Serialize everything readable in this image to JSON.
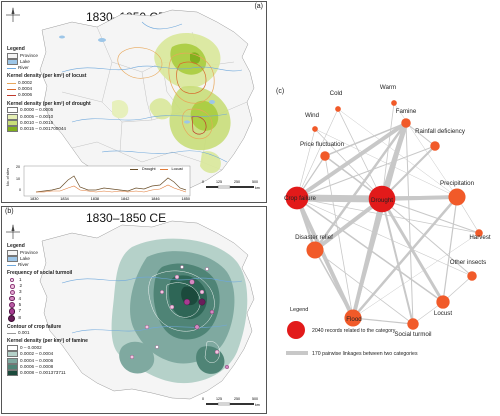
{
  "panel_a": {
    "label": "(a)",
    "title": "1830–1850 CE",
    "legend": {
      "heading": "Legend",
      "province": "Province",
      "lake": "Lake",
      "river": "River",
      "locust_title": "Kernel density (per km²) of locust",
      "locust_levels": [
        "0.0002",
        "0.0004",
        "0.0006"
      ],
      "drought_title": "Kernel density (per km²) of drought",
      "drought_levels": [
        "0.0000 – 0.0005",
        "0.0005 – 0.0010",
        "0.0010 – 0.0015",
        "0.0015 – 0.001700044"
      ]
    },
    "inset": {
      "ylabel": "No. of sites",
      "yticks": [
        "20",
        "10",
        "0"
      ],
      "xticks": [
        "1830",
        "1834",
        "1838",
        "1842",
        "1846",
        "1850"
      ],
      "legend_drought": "Drought",
      "legend_locust": "Locust"
    },
    "scale": [
      "0",
      "125",
      "250",
      "500"
    ],
    "scale_unit": "km"
  },
  "panel_b": {
    "label": "(b)",
    "title": "1830–1850 CE",
    "legend": {
      "heading": "Legend",
      "province": "Province",
      "lake": "Lake",
      "river": "River",
      "turmoil_title": "Frequency of social turmoil",
      "turmoil_levels": [
        "1",
        "2",
        "3",
        "4",
        "5",
        "7",
        "8"
      ],
      "crop_title": "Contour of crop failure",
      "crop_level": "0.001",
      "famine_title": "Kernel density (per km²) of famine",
      "famine_levels": [
        "0 – 0.0002",
        "0.0002 – 0.0004",
        "0.0004 – 0.0006",
        "0.0006 – 0.0008",
        "0.0008 – 0.001373711"
      ]
    },
    "scale": [
      "0",
      "125",
      "250",
      "500"
    ],
    "scale_unit": "km"
  },
  "panel_c": {
    "label": "(c)",
    "nodes": [
      {
        "id": "Cold",
        "size": 3
      },
      {
        "id": "Warm",
        "size": 3
      },
      {
        "id": "Famine",
        "size": 5
      },
      {
        "id": "Wind",
        "size": 3
      },
      {
        "id": "Rainfall deficiency",
        "size": 5
      },
      {
        "id": "Price fluctuation",
        "size": 5
      },
      {
        "id": "Precipitation",
        "size": 9
      },
      {
        "id": "Crop failure",
        "size": 12
      },
      {
        "id": "Drought",
        "size": 14
      },
      {
        "id": "Harvest",
        "size": 4
      },
      {
        "id": "Disaster relief",
        "size": 9
      },
      {
        "id": "Other insects",
        "size": 5
      },
      {
        "id": "Locust",
        "size": 7
      },
      {
        "id": "Flood",
        "size": 9
      },
      {
        "id": "Social turmoil",
        "size": 6
      }
    ],
    "legend": {
      "heading": "Legend",
      "node_text": "2040 records related to the category",
      "edge_text": "170 pairwise linkages between two categories"
    },
    "colors": {
      "node": "#f15a29",
      "node_large": "#e21a1a",
      "edge": "#c8c8c8"
    }
  }
}
